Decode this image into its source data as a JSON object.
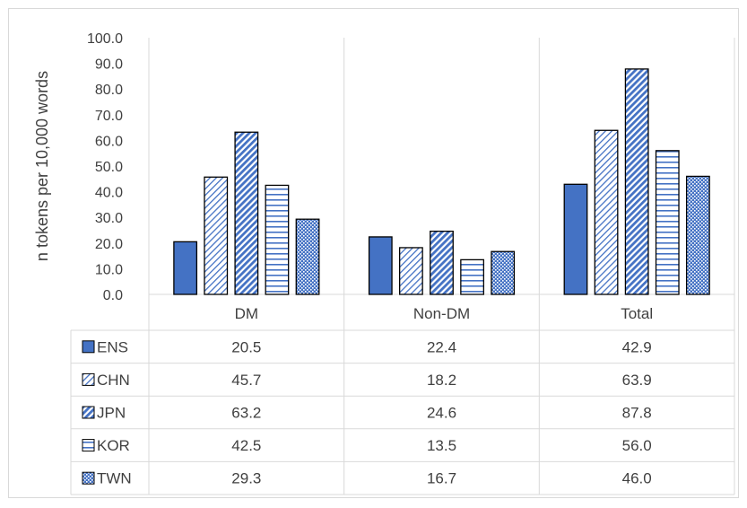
{
  "chart_data": {
    "type": "bar",
    "ylabel": "n tokens per 10,000 words",
    "ylim": [
      0,
      100
    ],
    "ytick_step": 10,
    "ytick_labels": [
      "0.0",
      "10.0",
      "20.0",
      "30.0",
      "40.0",
      "50.0",
      "60.0",
      "70.0",
      "80.0",
      "90.0",
      "100.0"
    ],
    "categories": [
      "DM",
      "Non-DM",
      "Total"
    ],
    "grid": "vertical category separators",
    "legend": "data table rows below chart",
    "series": [
      {
        "name": "ENS",
        "values": [
          20.5,
          22.4,
          42.9
        ],
        "display": [
          "20.5",
          "22.4",
          "42.9"
        ],
        "fill": "solid",
        "color": "#4472c4"
      },
      {
        "name": "CHN",
        "values": [
          45.7,
          18.2,
          63.9
        ],
        "display": [
          "45.7",
          "18.2",
          "63.9"
        ],
        "fill": "light-diagonal-stripes",
        "color": "#4472c4"
      },
      {
        "name": "JPN",
        "values": [
          63.2,
          24.6,
          87.8
        ],
        "display": [
          "63.2",
          "24.6",
          "87.8"
        ],
        "fill": "dense-diagonal-stripes",
        "color": "#4472c4"
      },
      {
        "name": "KOR",
        "values": [
          42.5,
          13.5,
          56.0
        ],
        "display": [
          "42.5",
          "13.5",
          "56.0"
        ],
        "fill": "horizontal-stripes",
        "color": "#4472c4"
      },
      {
        "name": "TWN",
        "values": [
          29.3,
          16.7,
          46.0
        ],
        "display": [
          "29.3",
          "16.7",
          "46.0"
        ],
        "fill": "checkered",
        "color": "#4472c4"
      }
    ]
  }
}
